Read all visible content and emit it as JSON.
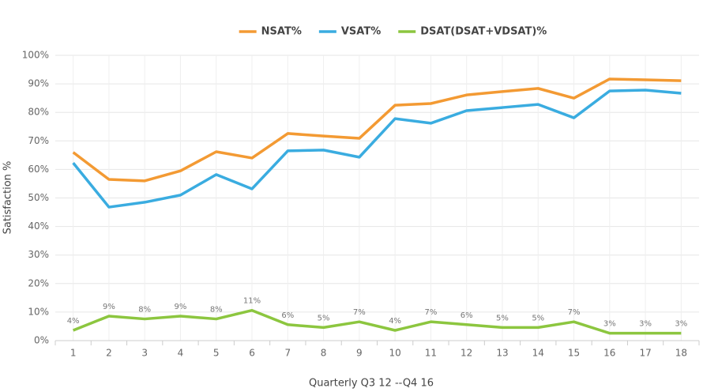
{
  "chart_data": {
    "type": "line",
    "x_label": "Quarterly Q3 12 --Q4 16",
    "y_label": "Satisfaction %",
    "categories": [
      "1",
      "2",
      "3",
      "4",
      "5",
      "6",
      "7",
      "8",
      "9",
      "10",
      "11",
      "12",
      "13",
      "14",
      "15",
      "16",
      "17",
      "18"
    ],
    "ylim": [
      0,
      100
    ],
    "yticks": [
      {
        "value": 0,
        "label": "0%"
      },
      {
        "value": 10,
        "label": "10%"
      },
      {
        "value": 20,
        "label": "20%"
      },
      {
        "value": 30,
        "label": "30%"
      },
      {
        "value": 40,
        "label": "40%"
      },
      {
        "value": 50,
        "label": "50%"
      },
      {
        "value": 60,
        "label": "60%"
      },
      {
        "value": 70,
        "label": "70%"
      },
      {
        "value": 80,
        "label": "80%"
      },
      {
        "value": 90,
        "label": "90%"
      },
      {
        "value": 100,
        "label": "100%"
      }
    ],
    "grid": true,
    "legend_position": "top",
    "series": [
      {
        "name": "NSAT%",
        "color": "#f39a33",
        "values": [
          66,
          56.5,
          56,
          59.5,
          66.2,
          64,
          72.6,
          71.7,
          70.9,
          82.5,
          83.1,
          86.1,
          87.3,
          88.4,
          85,
          91.7,
          91.4,
          91.1
        ]
      },
      {
        "name": "VSAT%",
        "color": "#3aace0",
        "values": [
          62.3,
          46.8,
          48.5,
          51,
          58.2,
          53.2,
          66.5,
          66.8,
          64.3,
          77.8,
          76.2,
          80.6,
          81.7,
          82.8,
          78.1,
          87.5,
          87.8,
          86.7
        ]
      },
      {
        "name": "DSAT(DSAT+VDSAT)%",
        "color": "#8cc63f",
        "values": [
          3.6,
          8.6,
          7.6,
          8.6,
          7.6,
          10.6,
          5.6,
          4.6,
          6.6,
          3.6,
          6.6,
          5.6,
          4.6,
          4.6,
          6.6,
          2.6,
          2.6,
          2.6
        ],
        "value_labels": [
          "4%",
          "9%",
          "8%",
          "9%",
          "8%",
          "11%",
          "6%",
          "5%",
          "7%",
          "4%",
          "7%",
          "6%",
          "5%",
          "5%",
          "7%",
          "3%",
          "3%",
          "3%"
        ]
      }
    ]
  }
}
